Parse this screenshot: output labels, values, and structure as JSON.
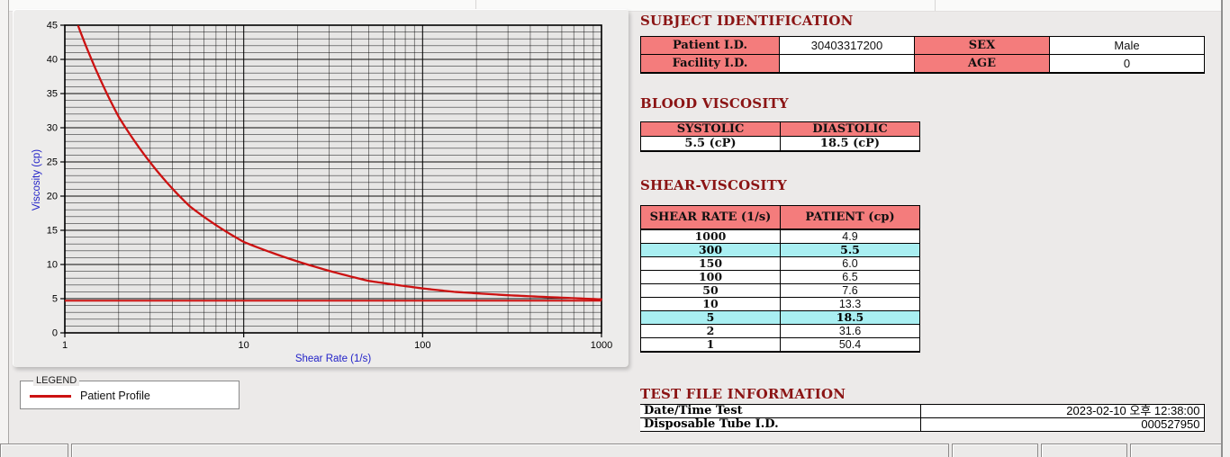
{
  "colors": {
    "accent_maroon": "#8B1414",
    "table_header_pink": "#F47C7C",
    "highlight_cyan": "#A9EFF2",
    "series_red": "#CC1212",
    "axis_label_blue": "#2222C8",
    "plot_background": "#E7E6E5"
  },
  "chart_data": {
    "type": "line",
    "title": "",
    "xlabel": "Shear Rate (1/s)",
    "ylabel": "Viscosity (cp)",
    "x_scale": "log",
    "xlim": [
      1,
      1000
    ],
    "ylim": [
      0,
      45
    ],
    "x_ticks": [
      1,
      10,
      100,
      1000
    ],
    "y_ticks": [
      0,
      5,
      10,
      15,
      20,
      25,
      30,
      35,
      40,
      45
    ],
    "grid": "on (log minor vertical lines, 1-cp horizontal lines, majors every 5 cp)",
    "series": [
      {
        "name": "Patient Profile",
        "color": "#CC1212",
        "x": [
          1,
          2,
          5,
          10,
          50,
          100,
          150,
          300,
          1000
        ],
        "y": [
          50.4,
          31.6,
          18.5,
          13.3,
          7.6,
          6.5,
          6.0,
          5.5,
          4.9
        ]
      }
    ],
    "reference_line": {
      "y": 4.7,
      "color": "#CC1212"
    },
    "legend": {
      "position": "below-chart group box",
      "box_label": "LEGEND",
      "entries": [
        {
          "label": "Patient Profile",
          "color": "#CC1212"
        }
      ]
    }
  },
  "subject_identification": {
    "title": "SUBJECT IDENTIFICATION",
    "patient_id_label": "Patient I.D.",
    "patient_id": "30403317200",
    "sex_label": "SEX",
    "sex": "Male",
    "facility_id_label": "Facility I.D.",
    "facility_id": "",
    "age_label": "AGE",
    "age": "0"
  },
  "blood_viscosity": {
    "title": "BLOOD VISCOSITY",
    "systolic_label": "SYSTOLIC",
    "diastolic_label": "DIASTOLIC",
    "systolic": "5.5 (cP)",
    "diastolic": "18.5 (cP)"
  },
  "shear_viscosity": {
    "title": "SHEAR-VISCOSITY",
    "col1": "SHEAR RATE (1/s)",
    "col2": "PATIENT (cp)",
    "rows": [
      {
        "shear_rate": "1000",
        "patient": "4.9",
        "highlight": false
      },
      {
        "shear_rate": "300",
        "patient": "5.5",
        "highlight": true
      },
      {
        "shear_rate": "150",
        "patient": "6.0",
        "highlight": false
      },
      {
        "shear_rate": "100",
        "patient": "6.5",
        "highlight": false
      },
      {
        "shear_rate": "50",
        "patient": "7.6",
        "highlight": false
      },
      {
        "shear_rate": "10",
        "patient": "13.3",
        "highlight": false
      },
      {
        "shear_rate": "5",
        "patient": "18.5",
        "highlight": true
      },
      {
        "shear_rate": "2",
        "patient": "31.6",
        "highlight": false
      },
      {
        "shear_rate": "1",
        "patient": "50.4",
        "highlight": false
      }
    ]
  },
  "test_file_information": {
    "title": "TEST FILE INFORMATION",
    "rows": [
      {
        "label": "Date/Time Test",
        "value": "2023-02-10  오후 12:38:00"
      },
      {
        "label": "Disposable Tube I.D.",
        "value": "000527950"
      }
    ]
  }
}
